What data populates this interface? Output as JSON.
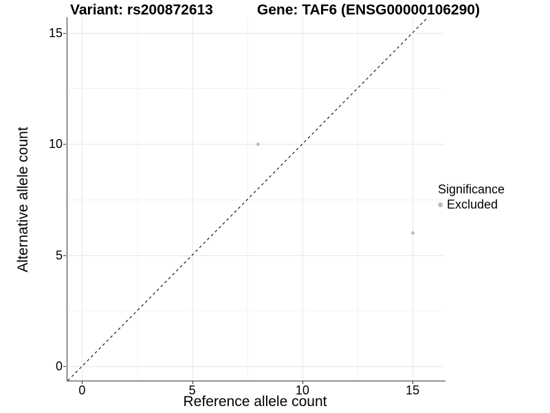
{
  "figure": {
    "title_left": "Variant: rs200872613",
    "title_right": "Gene: TAF6 (ENSG00000106290)"
  },
  "chart_data": {
    "type": "scatter",
    "title": "Variant: rs200872613   Gene: TAF6 (ENSG00000106290)",
    "xlabel": "Reference allele count",
    "ylabel": "Alternative allele count",
    "xlim": [
      -0.7,
      16.4
    ],
    "ylim": [
      -0.65,
      15.7
    ],
    "x_major_ticks": [
      0,
      5,
      10,
      15
    ],
    "y_major_ticks": [
      0,
      5,
      10,
      15
    ],
    "x_minor_ticks": [
      2.5,
      7.5,
      12.5
    ],
    "y_minor_ticks": [
      2.5,
      7.5,
      12.5
    ],
    "grid": true,
    "series": [
      {
        "name": "Excluded",
        "color": "#bebebe",
        "points": [
          {
            "x": 8,
            "y": 10
          },
          {
            "x": 15,
            "y": 6
          }
        ]
      }
    ],
    "identity_line": {
      "slope": 1,
      "intercept": 0,
      "style": "dashed",
      "color": "#1a1a1a"
    },
    "legend": {
      "title": "Significance",
      "position": "right",
      "items": [
        {
          "label": "Excluded",
          "color": "#bebebe"
        }
      ]
    },
    "colors": {
      "axis_line": "#333333",
      "grid_major": "#e6e6e6",
      "grid_minor": "#f2f2f2",
      "point": "#bebebe"
    }
  }
}
